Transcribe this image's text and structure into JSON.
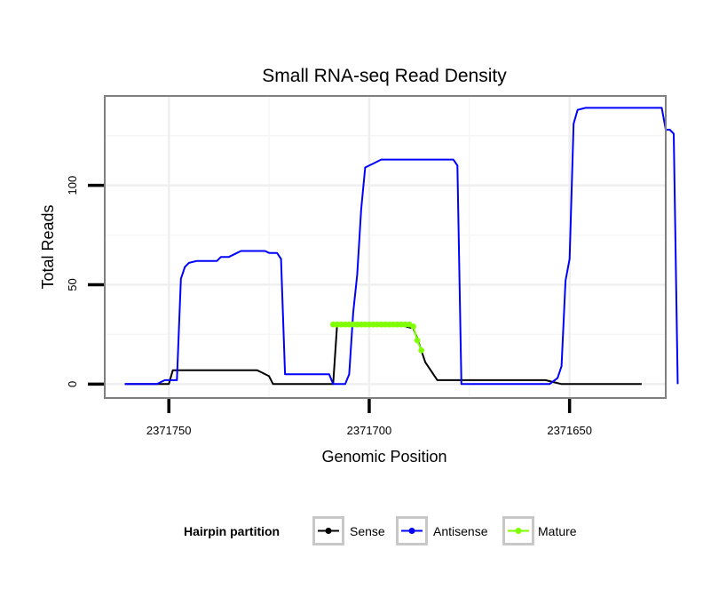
{
  "chart_data": {
    "type": "line",
    "title": "Small RNA-seq Read Density",
    "xlabel": "Genomic Position",
    "ylabel": "Total Reads",
    "xlim": [
      2371766,
      2371626
    ],
    "ylim": [
      -7,
      145
    ],
    "x_reversed": true,
    "grid": true,
    "x_ticks": [
      2371750,
      2371700,
      2371650
    ],
    "x_tick_labels": [
      "2371750",
      "2371700",
      "2371650"
    ],
    "y_ticks": [
      0,
      50,
      100
    ],
    "y_tick_labels": [
      "0",
      "50",
      "100"
    ],
    "legend": {
      "title": "Hairpin partition",
      "position": "bottom",
      "entries": [
        "Sense",
        "Antisense",
        "Mature"
      ]
    },
    "series": [
      {
        "name": "Sense",
        "color": "#000000",
        "points": [
          [
            2371761,
            0
          ],
          [
            2371750,
            0
          ],
          [
            2371749,
            7
          ],
          [
            2371744,
            7
          ],
          [
            2371735,
            7
          ],
          [
            2371728,
            7
          ],
          [
            2371727,
            6
          ],
          [
            2371725,
            4
          ],
          [
            2371724,
            0
          ],
          [
            2371709,
            0
          ],
          [
            2371708,
            30
          ],
          [
            2371703,
            30
          ],
          [
            2371698,
            30
          ],
          [
            2371693,
            30
          ],
          [
            2371689,
            28
          ],
          [
            2371688,
            23
          ],
          [
            2371687,
            17
          ],
          [
            2371686,
            11
          ],
          [
            2371683,
            2
          ],
          [
            2371670,
            2
          ],
          [
            2371656,
            2
          ],
          [
            2371654,
            1
          ],
          [
            2371652,
            0
          ],
          [
            2371632,
            0
          ]
        ]
      },
      {
        "name": "Antisense",
        "color": "#0000ff",
        "points": [
          [
            2371761,
            0
          ],
          [
            2371753,
            0
          ],
          [
            2371751,
            2
          ],
          [
            2371748,
            2
          ],
          [
            2371747,
            53
          ],
          [
            2371746,
            59
          ],
          [
            2371745,
            61
          ],
          [
            2371743,
            62
          ],
          [
            2371738,
            62
          ],
          [
            2371737,
            64
          ],
          [
            2371735,
            64
          ],
          [
            2371733,
            66
          ],
          [
            2371732,
            67
          ],
          [
            2371726,
            67
          ],
          [
            2371725,
            66
          ],
          [
            2371723,
            66
          ],
          [
            2371722,
            63
          ],
          [
            2371721,
            5
          ],
          [
            2371712,
            5
          ],
          [
            2371710,
            5
          ],
          [
            2371709,
            0
          ],
          [
            2371706,
            0
          ],
          [
            2371705,
            5
          ],
          [
            2371704,
            36
          ],
          [
            2371703,
            55
          ],
          [
            2371702,
            88
          ],
          [
            2371701,
            109
          ],
          [
            2371699,
            111
          ],
          [
            2371697,
            113
          ],
          [
            2371683,
            113
          ],
          [
            2371679,
            113
          ],
          [
            2371678,
            110
          ],
          [
            2371677,
            0
          ],
          [
            2371660,
            0
          ],
          [
            2371655,
            0
          ],
          [
            2371653,
            3
          ],
          [
            2371652,
            9
          ],
          [
            2371651,
            52
          ],
          [
            2371650,
            63
          ],
          [
            2371649,
            131
          ],
          [
            2371648,
            138
          ],
          [
            2371646,
            139
          ],
          [
            2371637,
            139
          ],
          [
            2371627,
            139
          ],
          [
            2371626,
            128
          ],
          [
            2371625,
            128
          ],
          [
            2371624,
            126
          ],
          [
            2371623,
            0
          ]
        ]
      },
      {
        "name": "Mature",
        "color": "#7fff00",
        "points": [
          [
            2371709,
            30
          ],
          [
            2371708,
            30
          ],
          [
            2371707,
            30
          ],
          [
            2371706,
            30
          ],
          [
            2371705,
            30
          ],
          [
            2371704,
            30
          ],
          [
            2371703,
            30
          ],
          [
            2371702,
            30
          ],
          [
            2371701,
            30
          ],
          [
            2371700,
            30
          ],
          [
            2371699,
            30
          ],
          [
            2371698,
            30
          ],
          [
            2371697,
            30
          ],
          [
            2371696,
            30
          ],
          [
            2371695,
            30
          ],
          [
            2371694,
            30
          ],
          [
            2371693,
            30
          ],
          [
            2371692,
            30
          ],
          [
            2371691,
            30
          ],
          [
            2371690,
            30
          ],
          [
            2371689,
            29
          ],
          [
            2371688,
            22
          ],
          [
            2371687,
            17
          ]
        ]
      }
    ]
  }
}
